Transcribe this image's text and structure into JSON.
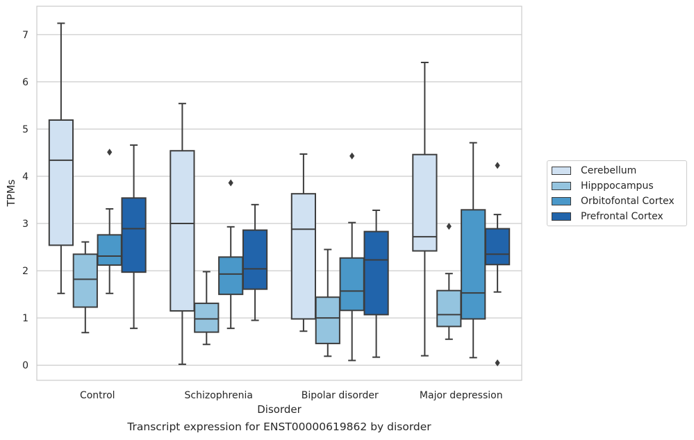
{
  "chart_data": {
    "type": "box",
    "title": "",
    "xlabel": "Disorder",
    "ylabel": "TPMs",
    "ylim": [
      -0.32,
      7.6
    ],
    "yticks": [
      0,
      1,
      2,
      3,
      4,
      5,
      6,
      7
    ],
    "grid": "horizontal",
    "legend_position": "right",
    "categories": [
      "Control",
      "Schizophrenia",
      "Bipolar disorder",
      "Major depression"
    ],
    "series": [
      {
        "name": "Cerebellum",
        "color": "#d0e1f2",
        "boxes": [
          {
            "min": 1.52,
            "q1": 2.54,
            "median": 4.34,
            "q3": 5.19,
            "max": 7.24,
            "outliers": []
          },
          {
            "min": 0.02,
            "q1": 1.15,
            "median": 3.0,
            "q3": 4.54,
            "max": 5.54,
            "outliers": []
          },
          {
            "min": 0.72,
            "q1": 0.98,
            "median": 2.88,
            "q3": 3.63,
            "max": 4.47,
            "outliers": []
          },
          {
            "min": 0.2,
            "q1": 2.42,
            "median": 2.72,
            "q3": 4.46,
            "max": 6.41,
            "outliers": []
          }
        ]
      },
      {
        "name": "Hipppocampus",
        "color": "#94c4df",
        "boxes": [
          {
            "min": 0.69,
            "q1": 1.23,
            "median": 1.82,
            "q3": 2.35,
            "max": 2.61,
            "outliers": []
          },
          {
            "min": 0.44,
            "q1": 0.7,
            "median": 0.98,
            "q3": 1.31,
            "max": 1.98,
            "outliers": []
          },
          {
            "min": 0.19,
            "q1": 0.46,
            "median": 1.0,
            "q3": 1.44,
            "max": 2.45,
            "outliers": []
          },
          {
            "min": 0.55,
            "q1": 0.82,
            "median": 1.07,
            "q3": 1.58,
            "max": 1.94,
            "outliers": [
              2.94
            ]
          }
        ]
      },
      {
        "name": "Orbitofontal Cortex",
        "color": "#4a98c9",
        "boxes": [
          {
            "min": 1.52,
            "q1": 2.12,
            "median": 2.31,
            "q3": 2.76,
            "max": 3.31,
            "outliers": [
              4.51
            ]
          },
          {
            "min": 0.78,
            "q1": 1.5,
            "median": 1.93,
            "q3": 2.29,
            "max": 2.93,
            "outliers": [
              3.86
            ]
          },
          {
            "min": 0.1,
            "q1": 1.16,
            "median": 1.57,
            "q3": 2.27,
            "max": 3.02,
            "outliers": [
              4.43
            ]
          },
          {
            "min": 0.16,
            "q1": 0.98,
            "median": 1.53,
            "q3": 3.29,
            "max": 4.71,
            "outliers": []
          }
        ]
      },
      {
        "name": "Prefrontal Cortex",
        "color": "#2164ab",
        "boxes": [
          {
            "min": 0.78,
            "q1": 1.97,
            "median": 2.89,
            "q3": 3.54,
            "max": 4.66,
            "outliers": []
          },
          {
            "min": 0.95,
            "q1": 1.61,
            "median": 2.04,
            "q3": 2.86,
            "max": 3.4,
            "outliers": []
          },
          {
            "min": 0.17,
            "q1": 1.07,
            "median": 2.23,
            "q3": 2.83,
            "max": 3.28,
            "outliers": []
          },
          {
            "min": 1.55,
            "q1": 2.13,
            "median": 2.35,
            "q3": 2.89,
            "max": 3.19,
            "outliers": [
              4.23,
              0.05
            ]
          }
        ]
      }
    ]
  },
  "caption": "Transcript expression for ENST00000619862 by disorder"
}
